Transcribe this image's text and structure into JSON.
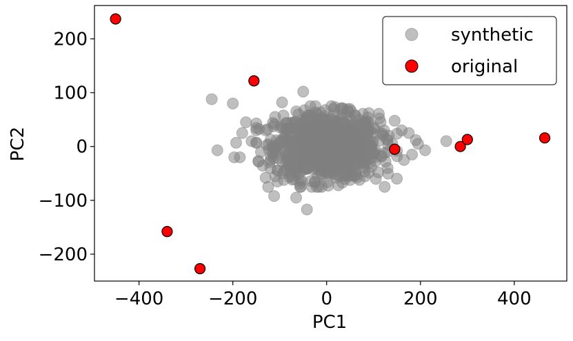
{
  "chart_data": {
    "type": "scatter",
    "xlabel": "PC1",
    "ylabel": "PC2",
    "xlim": [
      -495,
      512
    ],
    "ylim": [
      -250,
      262
    ],
    "xticks": [
      -400,
      -200,
      0,
      200,
      400
    ],
    "yticks": [
      -200,
      -100,
      0,
      100,
      200
    ],
    "xtick_labels": [
      "−400",
      "−200",
      "0",
      "200",
      "400"
    ],
    "ytick_labels": [
      "−200",
      "−100",
      "0",
      "100",
      "200"
    ],
    "grid": false,
    "legend": {
      "position": "top-right",
      "entries": [
        "synthetic",
        "original"
      ]
    },
    "series": [
      {
        "name": "synthetic",
        "color": "#808080",
        "alpha": 0.5,
        "cluster": {
          "center": [
            0,
            0
          ],
          "sd": [
            55,
            30
          ],
          "count": 900,
          "range_x": [
            -150,
            150
          ],
          "range_y": [
            -75,
            75
          ]
        },
        "points": [
          [
            -245,
            88
          ],
          [
            -200,
            80
          ],
          [
            -50,
            102
          ],
          [
            -172,
            45
          ],
          [
            -150,
            43
          ],
          [
            -233,
            -7
          ],
          [
            -197,
            -20
          ],
          [
            -193,
            7
          ],
          [
            -185,
            -20
          ],
          [
            -145,
            -28
          ],
          [
            -130,
            -58
          ],
          [
            -105,
            -65
          ],
          [
            -112,
            -92
          ],
          [
            -65,
            -95
          ],
          [
            -55,
            -75
          ],
          [
            -42,
            -117
          ],
          [
            -25,
            -65
          ],
          [
            -10,
            -55
          ],
          [
            25,
            -72
          ],
          [
            70,
            -62
          ],
          [
            105,
            -60
          ],
          [
            110,
            -48
          ],
          [
            130,
            -40
          ],
          [
            -95,
            82
          ],
          [
            -60,
            60
          ],
          [
            10,
            75
          ],
          [
            30,
            70
          ],
          [
            60,
            58
          ],
          [
            90,
            62
          ],
          [
            115,
            45
          ],
          [
            145,
            48
          ],
          [
            160,
            30
          ],
          [
            175,
            25
          ],
          [
            190,
            12
          ],
          [
            195,
            5
          ],
          [
            210,
            -7
          ],
          [
            182,
            -15
          ],
          [
            165,
            -25
          ],
          [
            255,
            10
          ],
          [
            150,
            -18
          ],
          [
            140,
            5
          ],
          [
            120,
            20
          ],
          [
            -130,
            30
          ],
          [
            -160,
            10
          ],
          [
            -180,
            25
          ],
          [
            -120,
            -40
          ],
          [
            -90,
            -45
          ],
          [
            -70,
            -60
          ],
          [
            40,
            -50
          ],
          [
            80,
            -30
          ],
          [
            100,
            35
          ],
          [
            -30,
            50
          ],
          [
            0,
            40
          ],
          [
            50,
            30
          ],
          [
            -80,
            20
          ],
          [
            -140,
            -10
          ],
          [
            130,
            -10
          ],
          [
            -110,
            55
          ],
          [
            70,
            50
          ],
          [
            -40,
            -40
          ]
        ]
      },
      {
        "name": "original",
        "color": "#ff0000",
        "edgecolor": "#000000",
        "points": [
          [
            -450,
            237
          ],
          [
            -155,
            122
          ],
          [
            -340,
            -158
          ],
          [
            -270,
            -227
          ],
          [
            145,
            -5
          ],
          [
            285,
            0
          ],
          [
            300,
            13
          ],
          [
            465,
            16
          ]
        ]
      }
    ]
  }
}
